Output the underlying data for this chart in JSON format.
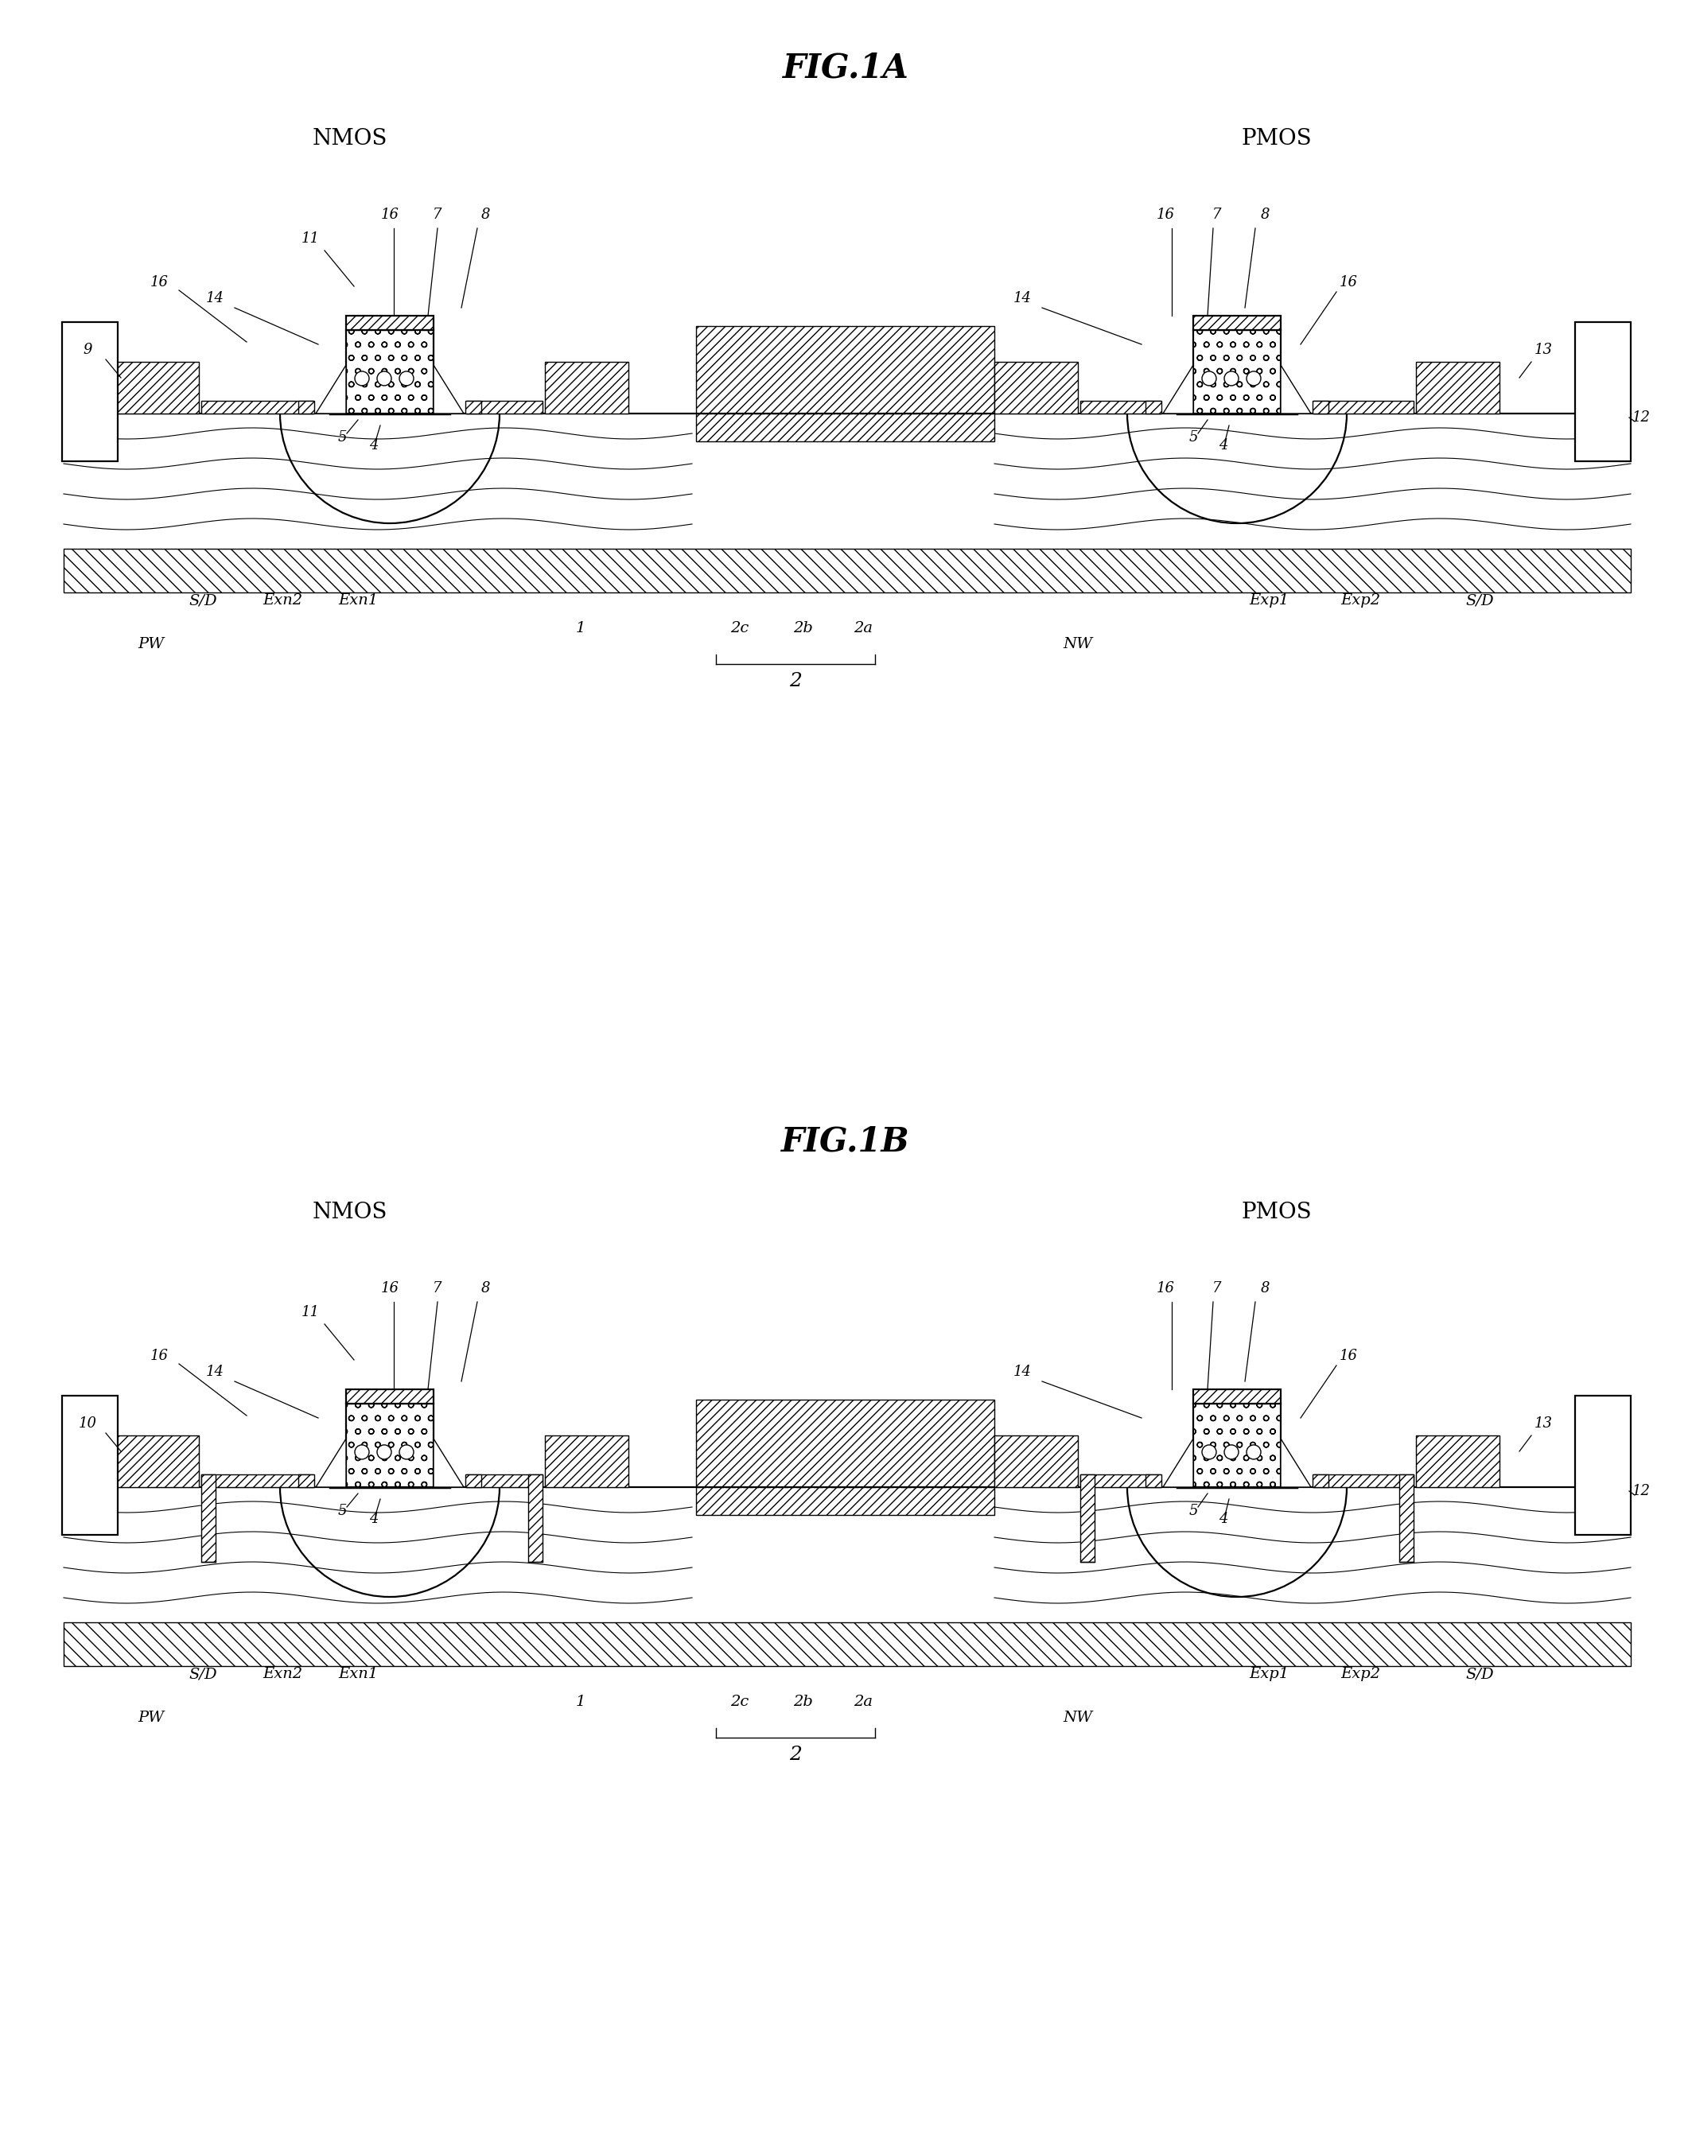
{
  "fig_title_a": "FIG.1A",
  "fig_title_b": "FIG.1B",
  "nmos_label": "NMOS",
  "pmos_label": "PMOS",
  "background_color": "#ffffff",
  "line_color": "#000000"
}
